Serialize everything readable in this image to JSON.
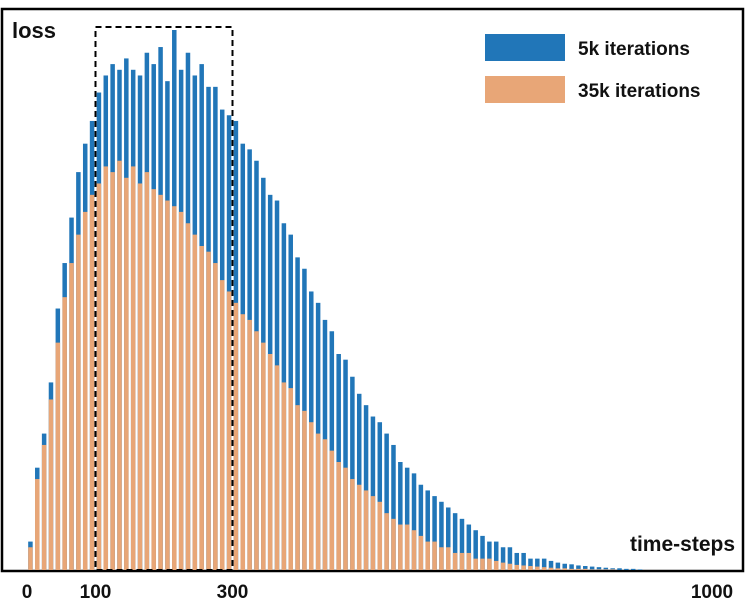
{
  "chart_data": {
    "type": "bar",
    "ylabel": "loss",
    "xlabel": "time-steps",
    "xlim": [
      0,
      1000
    ],
    "x_ticks": [
      "0",
      "100",
      "300",
      "1000"
    ],
    "grid": false,
    "legend_position": "top-right",
    "highlight_region": [
      100,
      300
    ],
    "bin_step": 10,
    "series": [
      {
        "name": "5k iterations",
        "color": "#2176b8",
        "values": [
          5,
          18,
          24,
          33,
          46,
          54,
          62,
          70,
          75,
          79,
          84,
          87,
          89,
          88,
          90,
          88,
          87,
          91,
          89,
          92,
          86,
          95,
          88,
          91,
          87,
          89,
          85,
          85,
          81,
          80,
          79,
          75,
          74,
          72,
          69,
          66,
          65,
          61,
          59,
          55,
          53,
          49,
          47,
          44,
          42,
          38,
          37,
          34,
          31,
          29,
          27,
          26,
          24,
          22,
          19,
          18,
          17,
          15,
          14,
          13,
          12,
          11,
          10,
          9,
          8,
          7,
          6,
          5,
          5,
          4,
          4,
          3,
          3,
          2,
          2,
          2,
          1.6,
          1.3,
          1.1,
          1.0,
          0.8,
          0.7,
          0.6,
          0.5,
          0.4,
          0.3,
          0.3,
          0.2,
          0.2,
          0.1
        ]
      },
      {
        "name": "35k iterations",
        "color": "#e8a677",
        "values": [
          4,
          16,
          22,
          30,
          40,
          48,
          54,
          59,
          63,
          66,
          68,
          71,
          70,
          72,
          69,
          71,
          68,
          70,
          67,
          66,
          65,
          64,
          63,
          61,
          59,
          57,
          56,
          54,
          51,
          49,
          47,
          45,
          44,
          42,
          40,
          38,
          36,
          33,
          32,
          29,
          28,
          26,
          24,
          23,
          21,
          19,
          18,
          16,
          15,
          14,
          13,
          12,
          10,
          9,
          8,
          8,
          7,
          6,
          5,
          5,
          4,
          4,
          3,
          3,
          3,
          2,
          2,
          2,
          1.6,
          1.3,
          1.1,
          0.9,
          0.8,
          0.7,
          0.6,
          0.5,
          0.4,
          0.3,
          0.3,
          0.2,
          0.2,
          0.2,
          0.1,
          0.1,
          0.1,
          0.1,
          0,
          0,
          0,
          0
        ]
      }
    ]
  }
}
